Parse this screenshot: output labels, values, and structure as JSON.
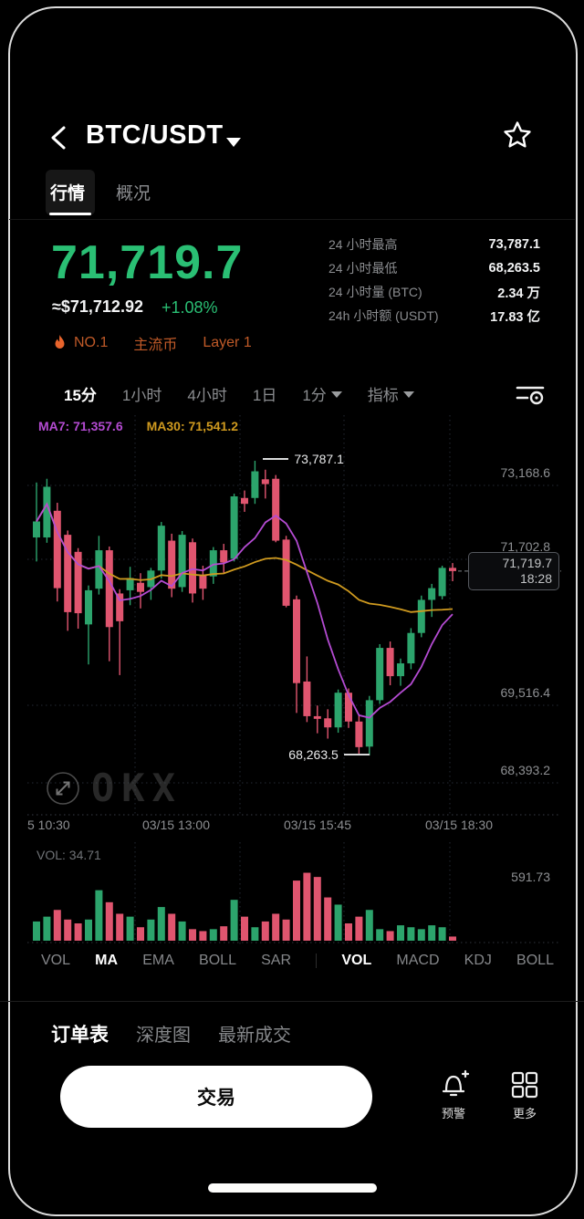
{
  "header": {
    "pair": "BTC/USDT",
    "tabs": [
      {
        "label": "行情",
        "active": true
      },
      {
        "label": "概况",
        "active": false
      }
    ]
  },
  "price_panel": {
    "last_price": "71,719.7",
    "fiat_approx": "≈$71,712.92",
    "change_pct": "+1.08%",
    "badges": [
      {
        "label": "NO.1",
        "icon": "flame-icon"
      },
      {
        "label": "主流币"
      },
      {
        "label": "Layer 1"
      }
    ]
  },
  "stats": [
    {
      "label": "24 小时最高",
      "value": "73,787.1"
    },
    {
      "label": "24 小时最低",
      "value": "68,263.5"
    },
    {
      "label": "24 小时量 (BTC)",
      "value": "2.34 万"
    },
    {
      "label": "24h 小时额 (USDT)",
      "value": "17.83 亿"
    }
  ],
  "timeframes": [
    {
      "label": "15分",
      "active": true
    },
    {
      "label": "1小时",
      "active": false
    },
    {
      "label": "4小时",
      "active": false
    },
    {
      "label": "1日",
      "active": false
    },
    {
      "label": "1分",
      "active": false,
      "caret": true
    },
    {
      "label": "指标",
      "active": false,
      "caret": true
    }
  ],
  "chart": {
    "ma7_label": "MA7: 71,357.6",
    "ma30_label": "MA30: 71,541.2",
    "high_annotation": "73,787.1",
    "low_annotation": "68,263.5",
    "price_tag": {
      "price": "71,719.7",
      "time": "18:28"
    },
    "y_axis": [
      {
        "label": "73,168.6"
      },
      {
        "label": "71,702.8"
      },
      {
        "label": "69,516.4"
      },
      {
        "label": "68,393.2"
      }
    ],
    "x_axis": [
      "5 10:30",
      "03/15 13:00",
      "03/15 15:45",
      "03/15 18:30"
    ],
    "vol_label": "VOL: 34.71",
    "vol_axis_label": "591.73",
    "watermark": "OKX"
  },
  "chart_data": {
    "type": "candlestick",
    "interval": "15m",
    "title": "BTC/USDT 15分 K线",
    "x_tick_labels": [
      "5 10:30",
      "03/15 13:00",
      "03/15 15:45",
      "03/15 18:30"
    ],
    "y_tick_values": [
      73168.6,
      71702.8,
      69516.4,
      68393.2
    ],
    "price_range": {
      "high": 73787.1,
      "low": 68263.5
    },
    "last_price": 71719.7,
    "last_time": "18:28",
    "ma_windows": [
      7,
      30
    ],
    "ma_current": {
      "ma7": 71357.6,
      "ma30": 71541.2
    },
    "ohlc": [
      [
        72350,
        73380,
        71900,
        72650
      ],
      [
        72350,
        73450,
        72250,
        73300
      ],
      [
        72850,
        73000,
        71150,
        71400
      ],
      [
        72400,
        72480,
        70600,
        70950
      ],
      [
        72080,
        72150,
        70640,
        70930
      ],
      [
        70720,
        71450,
        69970,
        71360
      ],
      [
        71390,
        72380,
        71280,
        72110
      ],
      [
        72110,
        72180,
        70030,
        70670
      ],
      [
        71300,
        71380,
        69770,
        70780
      ],
      [
        71360,
        71800,
        71080,
        71590
      ],
      [
        71500,
        71680,
        71020,
        71330
      ],
      [
        71420,
        71780,
        71180,
        71730
      ],
      [
        71730,
        72640,
        71580,
        72570
      ],
      [
        72290,
        72420,
        71230,
        71390
      ],
      [
        71420,
        72470,
        71330,
        72400
      ],
      [
        72260,
        72330,
        71130,
        71300
      ],
      [
        71650,
        71820,
        71180,
        71390
      ],
      [
        71620,
        72170,
        71480,
        72110
      ],
      [
        72110,
        72230,
        71680,
        71880
      ],
      [
        71950,
        73170,
        71900,
        73120
      ],
      [
        73090,
        73230,
        72830,
        72980
      ],
      [
        73090,
        73787.1,
        72980,
        73590
      ],
      [
        73440,
        73620,
        73080,
        73350
      ],
      [
        73450,
        73520,
        72260,
        72290
      ],
      [
        72310,
        72380,
        71040,
        71070
      ],
      [
        71190,
        71260,
        69060,
        69620
      ],
      [
        69650,
        70120,
        68890,
        69000
      ],
      [
        69000,
        69200,
        68680,
        68950
      ],
      [
        68960,
        69130,
        68580,
        68790
      ],
      [
        68790,
        69500,
        68690,
        69440
      ],
      [
        69440,
        69520,
        68780,
        68900
      ],
      [
        68900,
        69020,
        68280,
        68420
      ],
      [
        68430,
        69380,
        68263.5,
        69300
      ],
      [
        69300,
        70350,
        69230,
        70280
      ],
      [
        70280,
        70400,
        69580,
        69750
      ],
      [
        69750,
        70080,
        69570,
        69990
      ],
      [
        69990,
        70650,
        69880,
        70560
      ],
      [
        70560,
        71260,
        70480,
        71180
      ],
      [
        71180,
        71480,
        70860,
        71400
      ],
      [
        71250,
        71820,
        71190,
        71780
      ],
      [
        71780,
        71870,
        71530,
        71719.7
      ]
    ],
    "volume": [
      160,
      200,
      256,
      176,
      144,
      176,
      420,
      320,
      224,
      200,
      112,
      176,
      280,
      224,
      160,
      96,
      80,
      96,
      120,
      340,
      200,
      112,
      160,
      224,
      176,
      500,
      565,
      530,
      360,
      300,
      144,
      200,
      256,
      96,
      80,
      128,
      112,
      96,
      128,
      112,
      34.71
    ],
    "volume_axis_max": 591.73,
    "volume_current": 34.71,
    "colors": {
      "up": "#2ca46c",
      "down": "#e0556f",
      "ma7": "#b44bd2",
      "ma30": "#cf9a1f",
      "price": "#2abf74",
      "grid": "rgba(130,150,190,0.28)",
      "badge": "#c05a28"
    }
  },
  "indicator_tabs": [
    {
      "label": "VOL",
      "active": false
    },
    {
      "label": "MA",
      "active": true
    },
    {
      "label": "EMA",
      "active": false
    },
    {
      "label": "BOLL",
      "active": false
    },
    {
      "label": "SAR",
      "active": false
    },
    {
      "label": "VOL",
      "active": true
    },
    {
      "label": "MACD",
      "active": false
    },
    {
      "label": "KDJ",
      "active": false
    },
    {
      "label": "BOLL",
      "active": false
    }
  ],
  "bottom_tabs": [
    {
      "label": "订单表",
      "active": true
    },
    {
      "label": "深度图",
      "active": false
    },
    {
      "label": "最新成交",
      "active": false
    }
  ],
  "action_bar": {
    "trade_label": "交易",
    "alert_label": "预警",
    "more_label": "更多"
  }
}
